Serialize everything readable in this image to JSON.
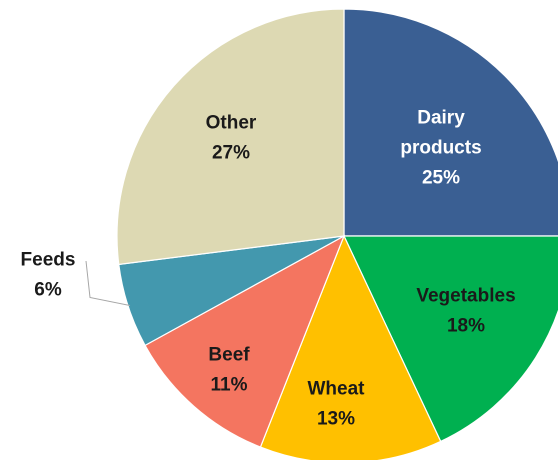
{
  "chart_data": {
    "type": "pie",
    "title": "",
    "slices": [
      {
        "name": "Dairy products",
        "label_lines": [
          "Dairy",
          "products"
        ],
        "pct_label": "25%",
        "value": 25,
        "color": "#3A5F93",
        "label_color": "#FFFFFF"
      },
      {
        "name": "Vegetables",
        "label_lines": [
          "Vegetables"
        ],
        "pct_label": "18%",
        "value": 18,
        "color": "#00B050",
        "label_color": "#1A1A1A"
      },
      {
        "name": "Wheat",
        "label_lines": [
          "Wheat"
        ],
        "pct_label": "13%",
        "value": 13,
        "color": "#FFC000",
        "label_color": "#1A1A1A"
      },
      {
        "name": "Beef",
        "label_lines": [
          "Beef"
        ],
        "pct_label": "11%",
        "value": 11,
        "color": "#F47560",
        "label_color": "#1A1A1A"
      },
      {
        "name": "Feeds",
        "label_lines": [
          "Feeds"
        ],
        "pct_label": "6%",
        "value": 6,
        "color": "#4398AE",
        "label_color": "#1A1A1A",
        "label_outside": true
      },
      {
        "name": "Other",
        "label_lines": [
          "Other"
        ],
        "pct_label": "27%",
        "value": 27,
        "color": "#DDD9B3",
        "label_color": "#1A1A1A"
      }
    ],
    "start": "12 o'clock",
    "direction": "clockwise",
    "legend": "none"
  }
}
